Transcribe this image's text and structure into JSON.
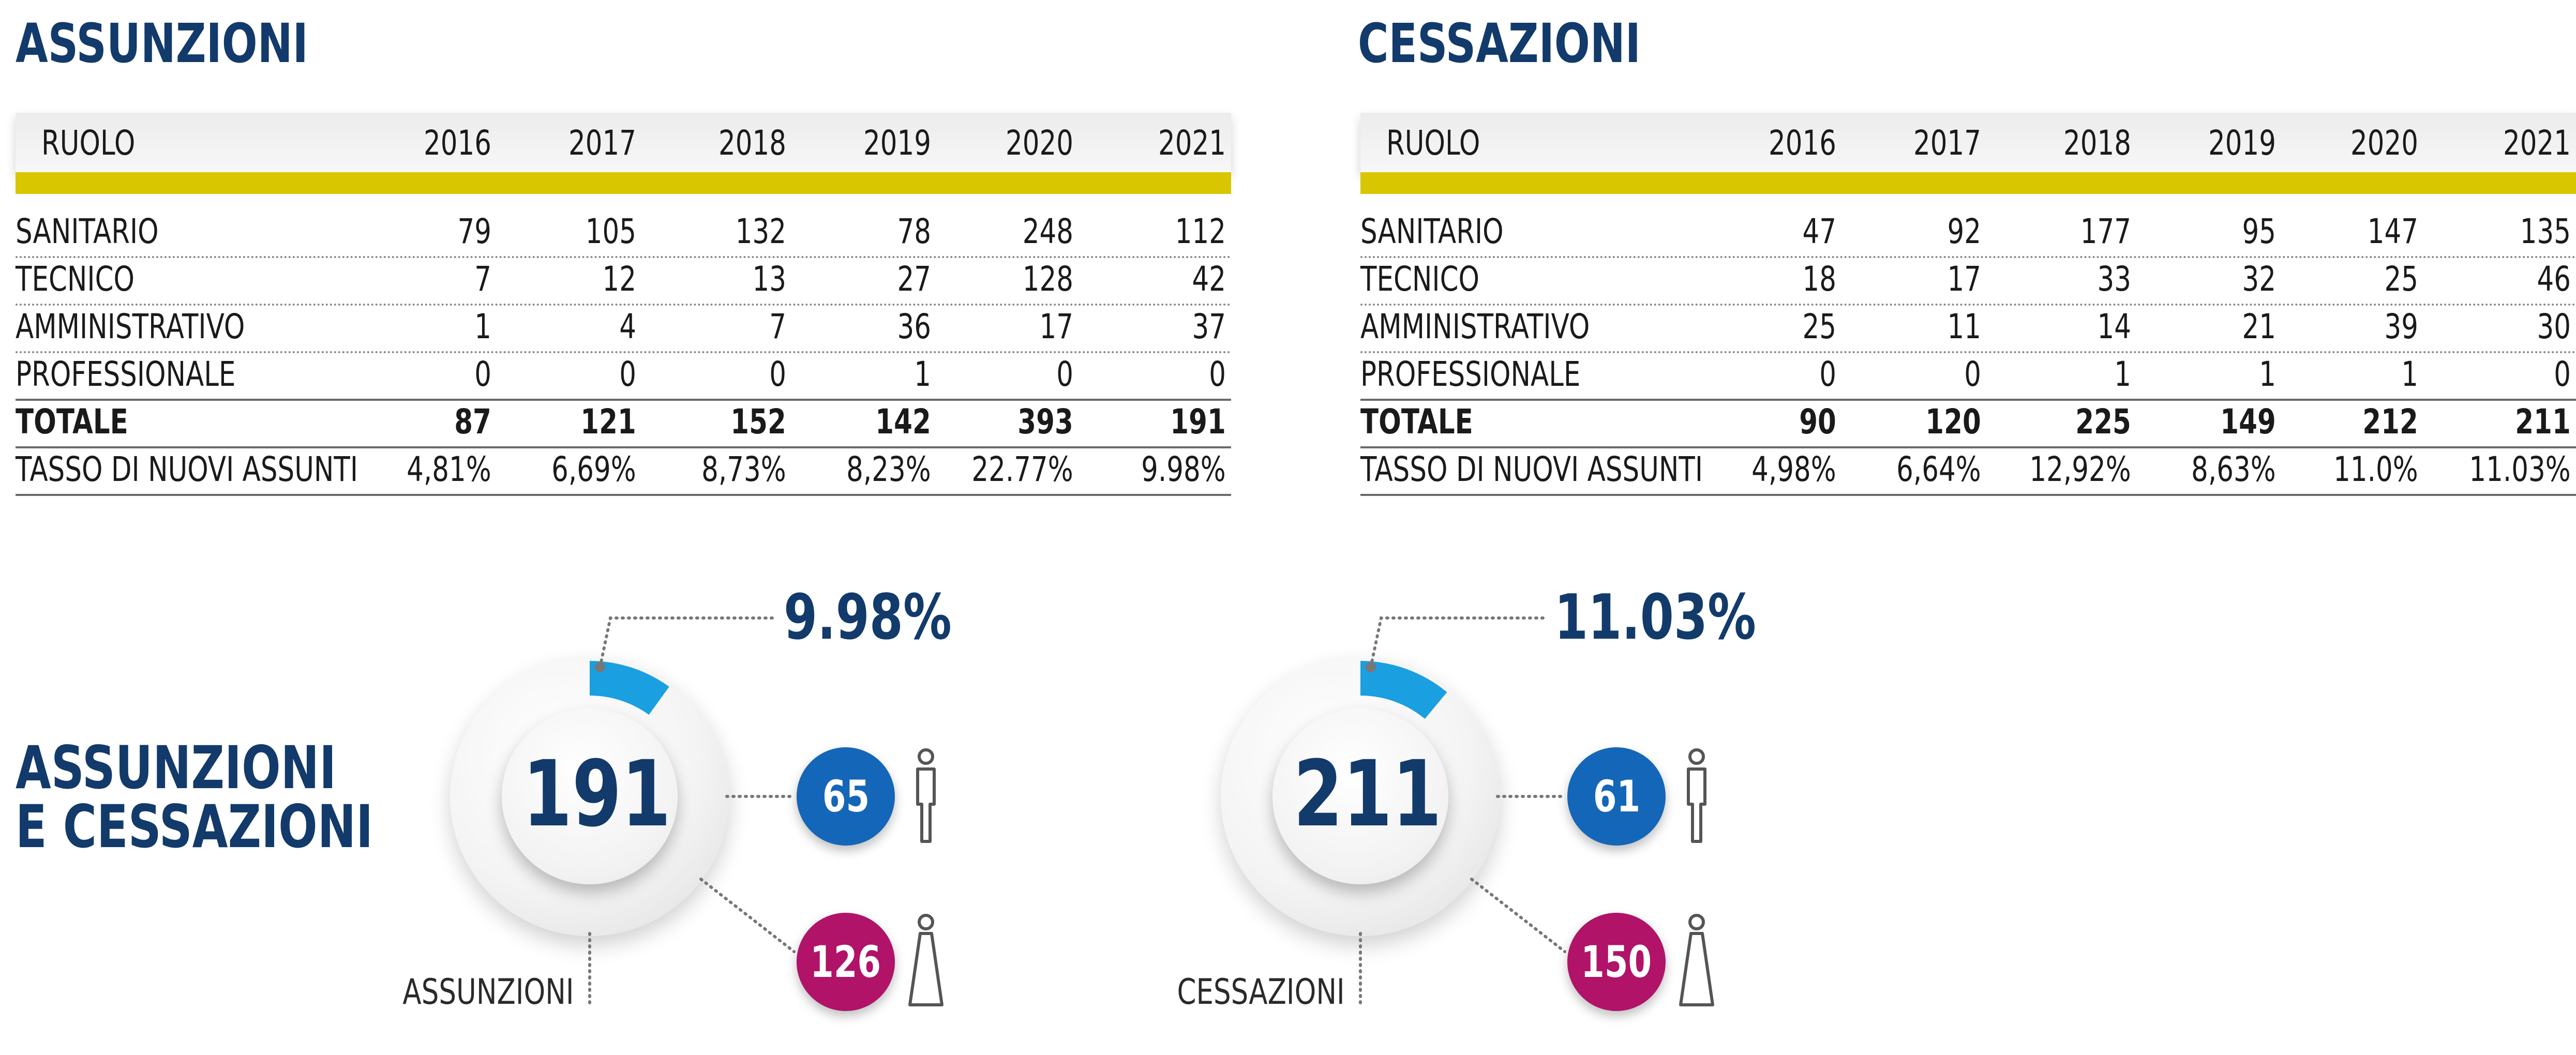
{
  "colors": {
    "title": "#123a6b",
    "accent_yellow": "#d8c600",
    "men_badge": "#1466b8",
    "women_badge": "#b01368",
    "donut_segment": "#1a9fe0"
  },
  "assunzioni": {
    "title": "ASSUNZIONI",
    "columns": [
      "RUOLO",
      "2016",
      "2017",
      "2018",
      "2019",
      "2020",
      "2021"
    ],
    "rows": [
      {
        "label": "SANITARIO",
        "values": [
          "79",
          "105",
          "132",
          "78",
          "248",
          "112"
        ]
      },
      {
        "label": "TECNICO",
        "values": [
          "7",
          "12",
          "13",
          "27",
          "128",
          "42"
        ]
      },
      {
        "label": "AMMINISTRATIVO",
        "values": [
          "1",
          "4",
          "7",
          "36",
          "17",
          "37"
        ]
      },
      {
        "label": "PROFESSIONALE",
        "values": [
          "0",
          "0",
          "0",
          "1",
          "0",
          "0"
        ]
      }
    ],
    "total": {
      "label": "TOTALE",
      "values": [
        "87",
        "121",
        "152",
        "142",
        "393",
        "191"
      ]
    },
    "rate": {
      "label": "TASSO DI NUOVI ASSUNTI",
      "values": [
        "4,81%",
        "6,69%",
        "8,73%",
        "8,23%",
        "22.77%",
        "9.98%"
      ]
    }
  },
  "cessazioni": {
    "title": "CESSAZIONI",
    "columns": [
      "RUOLO",
      "2016",
      "2017",
      "2018",
      "2019",
      "2020",
      "2021"
    ],
    "rows": [
      {
        "label": "SANITARIO",
        "values": [
          "47",
          "92",
          "177",
          "95",
          "147",
          "135"
        ]
      },
      {
        "label": "TECNICO",
        "values": [
          "18",
          "17",
          "33",
          "32",
          "25",
          "46"
        ]
      },
      {
        "label": "AMMINISTRATIVO",
        "values": [
          "25",
          "11",
          "14",
          "21",
          "39",
          "30"
        ]
      },
      {
        "label": "PROFESSIONALE",
        "values": [
          "0",
          "0",
          "1",
          "1",
          "1",
          "0"
        ]
      }
    ],
    "total": {
      "label": "TOTALE",
      "values": [
        "90",
        "120",
        "225",
        "149",
        "212",
        "211"
      ]
    },
    "rate": {
      "label": "TASSO DI NUOVI ASSUNTI",
      "values": [
        "4,98%",
        "6,64%",
        "12,92%",
        "8,63%",
        "11.0%",
        "11.03%"
      ]
    }
  },
  "summary": {
    "title_line1": "ASSUNZIONI",
    "title_line2": "E CESSAZIONI",
    "hires": {
      "total": "191",
      "percent": "9.98%",
      "men": "65",
      "women": "126",
      "caption": "ASSUNZIONI",
      "icon_men": "male-person-icon",
      "icon_women": "female-person-icon"
    },
    "exits": {
      "total": "211",
      "percent": "11.03%",
      "men": "61",
      "women": "150",
      "caption": "CESSAZIONI",
      "icon_men": "male-person-icon",
      "icon_women": "female-person-icon"
    }
  },
  "chart_data": [
    {
      "type": "table",
      "title": "ASSUNZIONI",
      "categories": [
        "2016",
        "2017",
        "2018",
        "2019",
        "2020",
        "2021"
      ],
      "series": [
        {
          "name": "SANITARIO",
          "values": [
            79,
            105,
            132,
            78,
            248,
            112
          ]
        },
        {
          "name": "TECNICO",
          "values": [
            7,
            12,
            13,
            27,
            128,
            42
          ]
        },
        {
          "name": "AMMINISTRATIVO",
          "values": [
            1,
            4,
            7,
            36,
            17,
            37
          ]
        },
        {
          "name": "PROFESSIONALE",
          "values": [
            0,
            0,
            0,
            1,
            0,
            0
          ]
        },
        {
          "name": "TOTALE",
          "values": [
            87,
            121,
            152,
            142,
            393,
            191
          ]
        },
        {
          "name": "TASSO DI NUOVI ASSUNTI",
          "values": [
            4.81,
            6.69,
            8.73,
            8.23,
            22.77,
            9.98
          ]
        }
      ]
    },
    {
      "type": "table",
      "title": "CESSAZIONI",
      "categories": [
        "2016",
        "2017",
        "2018",
        "2019",
        "2020",
        "2021"
      ],
      "series": [
        {
          "name": "SANITARIO",
          "values": [
            47,
            92,
            177,
            95,
            147,
            135
          ]
        },
        {
          "name": "TECNICO",
          "values": [
            18,
            17,
            33,
            32,
            25,
            46
          ]
        },
        {
          "name": "AMMINISTRATIVO",
          "values": [
            25,
            11,
            14,
            21,
            39,
            30
          ]
        },
        {
          "name": "PROFESSIONALE",
          "values": [
            0,
            0,
            1,
            1,
            1,
            0
          ]
        },
        {
          "name": "TOTALE",
          "values": [
            90,
            120,
            225,
            149,
            212,
            211
          ]
        },
        {
          "name": "TASSO DI NUOVI ASSUNTI",
          "values": [
            4.98,
            6.64,
            12.92,
            8.63,
            11.0,
            11.03
          ]
        }
      ]
    },
    {
      "type": "pie",
      "title": "ASSUNZIONI",
      "total": 191,
      "highlight_percent": 9.98,
      "breakdown": {
        "men": 65,
        "women": 126
      }
    },
    {
      "type": "pie",
      "title": "CESSAZIONI",
      "total": 211,
      "highlight_percent": 11.03,
      "breakdown": {
        "men": 61,
        "women": 150
      }
    }
  ]
}
